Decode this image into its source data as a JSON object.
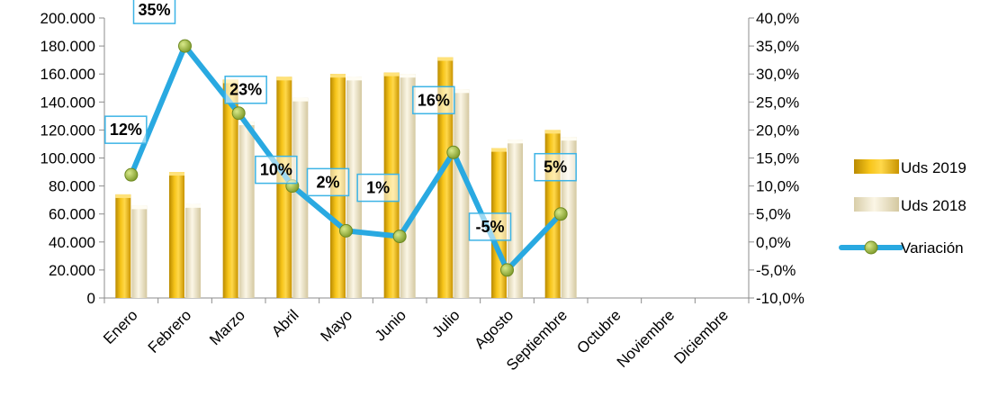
{
  "chart_data": {
    "type": "bar",
    "categories": [
      "Enero",
      "Febrero",
      "Marzo",
      "Abril",
      "Mayo",
      "Junio",
      "Julio",
      "Agosto",
      "Septiembre",
      "Octubre",
      "Noviembre",
      "Diciembre"
    ],
    "series": [
      {
        "name": "Uds 2019",
        "type": "bar",
        "axis": "left",
        "color": "#F2B705",
        "values": [
          74000,
          90000,
          156000,
          158000,
          160000,
          161000,
          172000,
          107000,
          120000,
          null,
          null,
          null
        ]
      },
      {
        "name": "Uds 2018",
        "type": "bar",
        "axis": "left",
        "color": "#EDE3C4",
        "values": [
          66000,
          67000,
          126000,
          143000,
          158000,
          160000,
          149000,
          113000,
          115000,
          null,
          null,
          null
        ]
      },
      {
        "name": "Variación",
        "type": "line",
        "axis": "right",
        "color": "#29A9E1",
        "marker_color": "#9DB83E",
        "values": [
          12,
          35,
          23,
          10,
          2,
          1,
          16,
          -5,
          5,
          null,
          null,
          null
        ],
        "data_labels": [
          "12%",
          "35%",
          "23%",
          "10%",
          "2%",
          "1%",
          "16%",
          "-5%",
          "5%"
        ]
      }
    ],
    "left_axis": {
      "ylim": [
        0,
        200000
      ],
      "ticks": [
        "0",
        "20.000",
        "40.000",
        "60.000",
        "80.000",
        "100.000",
        "120.000",
        "140.000",
        "160.000",
        "180.000",
        "200.000"
      ]
    },
    "right_axis": {
      "ylim": [
        -10,
        40
      ],
      "ticks": [
        "-10,0%",
        "-5,0%",
        "0,0%",
        "5,0%",
        "10,0%",
        "15,0%",
        "20,0%",
        "25,0%",
        "30,0%",
        "35,0%",
        "40,0%"
      ]
    },
    "grid": false,
    "legend_position": "right"
  }
}
